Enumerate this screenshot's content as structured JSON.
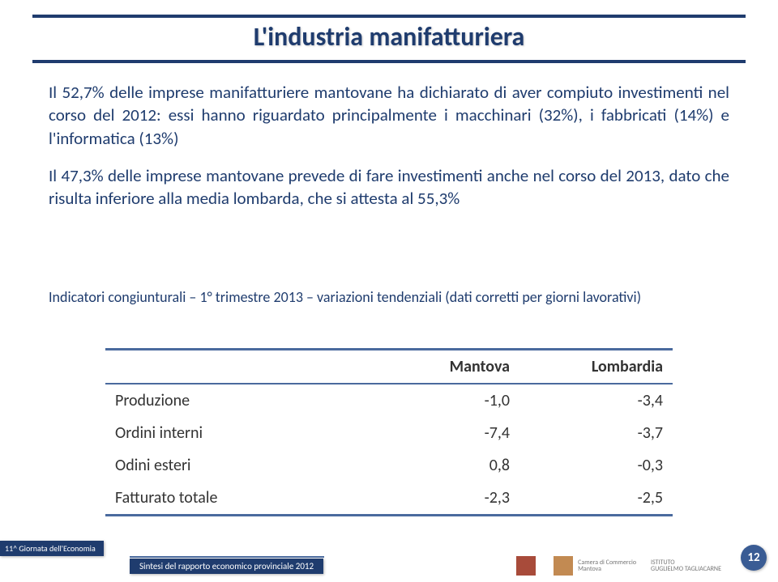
{
  "title": "L'industria manifatturiera",
  "paragraph1": "Il 52,7% delle imprese manifatturiere mantovane ha dichiarato di aver compiuto investimenti nel corso del 2012: essi hanno riguardato principalmente i macchinari (32%), i fabbricati (14%) e l'informatica (13%)",
  "paragraph2": "Il 47,3% delle imprese mantovane prevede di fare investimenti anche nel corso del 2013, dato che risulta inferiore alla media lombarda, che si attesta al 55,3%",
  "table_caption": "Indicatori congiunturali – 1° trimestre 2013 – variazioni tendenziali (dati corretti per giorni lavorativi)",
  "table": {
    "headers": [
      "",
      "Mantova",
      "Lombardia"
    ],
    "rows": [
      {
        "label": "Produzione",
        "mantova": "-1,0",
        "lombardia": "-3,4"
      },
      {
        "label": "Ordini interni",
        "mantova": "-7,4",
        "lombardia": "-3,7"
      },
      {
        "label": "Odini esteri",
        "mantova": "0,8",
        "lombardia": "-0,3"
      },
      {
        "label": "Fatturato totale",
        "mantova": "-2,3",
        "lombardia": "-2,5"
      }
    ]
  },
  "footer": {
    "badge": "11^ Giornata dell'Economia",
    "subtitle": "Sintesi del rapporto economico provinciale 2012",
    "page": "12",
    "logo1_line1": "Camera di Commercio",
    "logo1_line2": "Mantova",
    "logo2_line1": "ISTITUTO",
    "logo2_line2": "GUGLIELMO TAGLIACARNE"
  },
  "colors": {
    "primary": "#1f3c6e",
    "line": "#4a6a9e",
    "bg": "#ffffff"
  }
}
